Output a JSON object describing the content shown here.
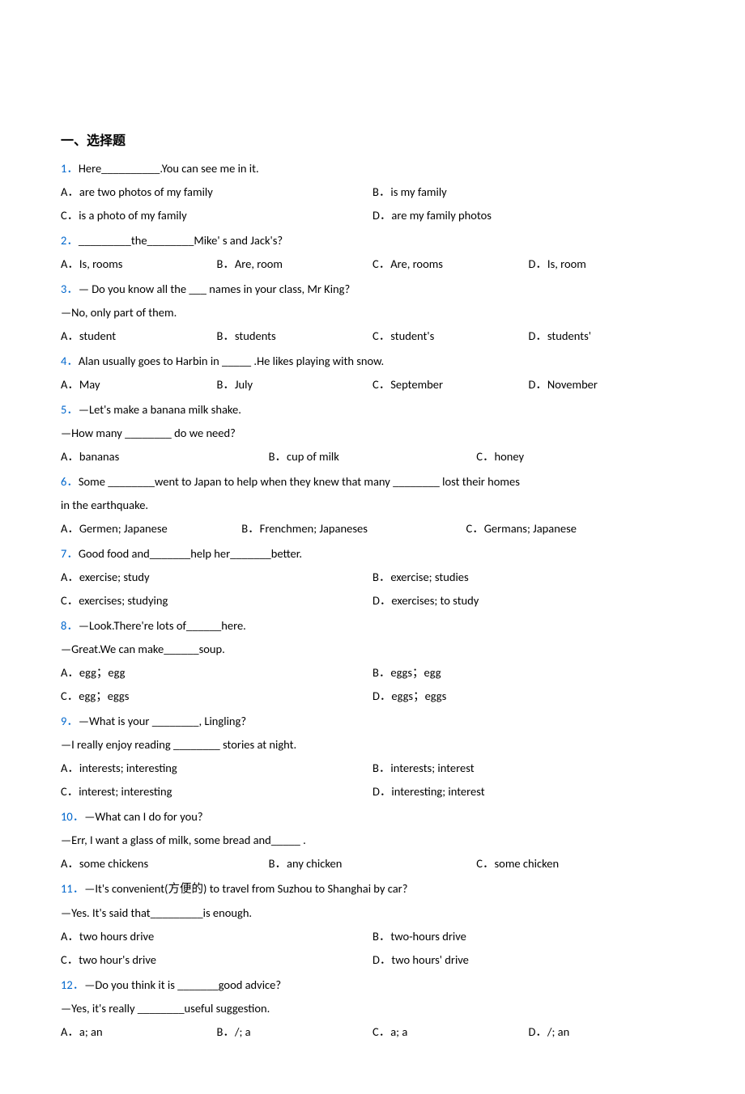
{
  "section_title": "一、选择题",
  "questions": [
    {
      "num": "1．",
      "stem": "Here__________.You can see me in it.",
      "layout": "2",
      "opts": [
        "A．are two photos of my family",
        "B．is my family",
        "C．is a photo of my family",
        "D．are my family photos"
      ]
    },
    {
      "num": "2．",
      "stem": "_________the________Mike' s and Jack's?",
      "layout": "4",
      "opts": [
        "A．Is, rooms",
        "B．Are, room",
        "C．Are, rooms",
        "D．Is, room"
      ]
    },
    {
      "num": "3．",
      "stem": "— Do you know all the ___ names in your class, Mr King?",
      "sub": "—No, only part of them.",
      "layout": "4",
      "opts": [
        "A．student",
        "B．students",
        "C．student's",
        "D．students'"
      ]
    },
    {
      "num": "4．",
      "stem": "Alan usually goes to Harbin in _____ .He likes playing with snow.",
      "layout": "4",
      "opts": [
        "A．May",
        "B．July",
        "C．September",
        "D．November"
      ]
    },
    {
      "num": "5．",
      "stem": "—Let's make a banana milk shake.",
      "sub": "—How many ________ do we need?",
      "layout": "3",
      "opts": [
        "A．bananas",
        "B．cup of milk",
        "C．honey"
      ]
    },
    {
      "num": "6．",
      "stem": "Some ________went to Japan to help when they knew that many ________ lost their homes",
      "sub": "in the earthquake.",
      "layout": "3-wide",
      "opts": [
        "A．Germen; Japanese",
        "B．Frenchmen; Japaneses",
        "C．Germans; Japanese"
      ]
    },
    {
      "num": "7．",
      "stem": "Good food and_______help her_______better.",
      "layout": "2",
      "opts": [
        "A．exercise; study",
        "B．exercise; studies",
        "C．exercises; studying",
        "D．exercises; to study"
      ]
    },
    {
      "num": "8．",
      "stem": "—Look.There're lots of______here.",
      "sub": "—Great.We can make______soup.",
      "layout": "2",
      "opts": [
        "A．egg；egg",
        "B．eggs；egg",
        "C．egg；eggs",
        "D．eggs；eggs"
      ]
    },
    {
      "num": "9．",
      "stem": "—What is your ________, Lingling?",
      "sub": "—I really enjoy reading ________ stories at night.",
      "layout": "2",
      "opts": [
        "A．interests; interesting",
        "B．interests; interest",
        "C．interest; interesting",
        "D．interesting; interest"
      ]
    },
    {
      "num": "10．",
      "stem": "—What can I do for you?",
      "sub": "—Err, I want a glass of milk, some bread and_____ .",
      "layout": "3",
      "opts": [
        "A．some chickens",
        "B．any chicken",
        "C．some chicken"
      ]
    },
    {
      "num": "11．",
      "stem": "—It's convenient(方便的) to travel from Suzhou to Shanghai by car?",
      "sub": "—Yes. It's said that_________is enough.",
      "layout": "2",
      "opts": [
        "A．two hours drive",
        "B．two-hours drive",
        "C．two hour's drive",
        "D．two hours' drive"
      ]
    },
    {
      "num": "12．",
      "stem": "—Do you think it is _______good advice?",
      "sub": "—Yes, it's really ________useful suggestion.",
      "layout": "4",
      "opts": [
        "A．a; an",
        "B．/; a",
        "C．a; a",
        "D．/; an"
      ]
    }
  ]
}
